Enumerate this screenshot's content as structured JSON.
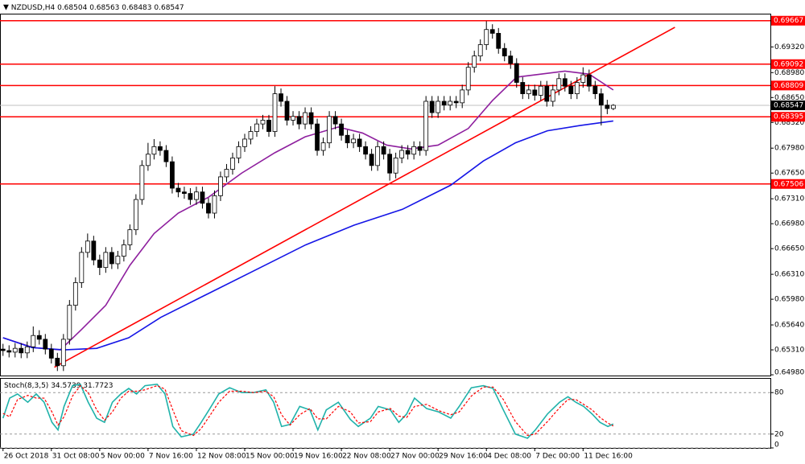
{
  "chart_data": [
    {
      "type": "candlestick",
      "title": "NZDUSD,H4",
      "open": [
        0.6532,
        0.653,
        0.6528,
        0.6533,
        0.6527,
        0.6535,
        0.655,
        0.6545,
        0.6532,
        0.652,
        0.651,
        0.6545,
        0.659,
        0.662,
        0.666,
        0.6675,
        0.665,
        0.664,
        0.666,
        0.6645,
        0.6655,
        0.667,
        0.669,
        0.673,
        0.6775,
        0.679,
        0.68,
        0.6795,
        0.678,
        0.6745,
        0.674,
        0.6738,
        0.673,
        0.674,
        0.6725,
        0.6712,
        0.6735,
        0.676,
        0.677,
        0.6785,
        0.68,
        0.681,
        0.682,
        0.683,
        0.6835,
        0.682,
        0.687,
        0.686,
        0.6835,
        0.684,
        0.683,
        0.6845,
        0.683,
        0.6795,
        0.6805,
        0.684,
        0.683,
        0.6815,
        0.6805,
        0.681,
        0.68,
        0.679,
        0.6775,
        0.68,
        0.679,
        0.6765,
        0.6785,
        0.6795,
        0.679,
        0.68,
        0.6795,
        0.686,
        0.6845,
        0.686,
        0.6855,
        0.686,
        0.6858,
        0.6875,
        0.6905,
        0.692,
        0.6935,
        0.6955,
        0.695,
        0.693,
        0.692,
        0.691,
        0.6885,
        0.687,
        0.6875,
        0.6868,
        0.688,
        0.686,
        0.6875,
        0.689,
        0.688,
        0.687,
        0.6885,
        0.6895,
        0.688,
        0.687,
        0.6855,
        0.68504
      ],
      "high": [
        0.6539,
        0.6537,
        0.654,
        0.654,
        0.6542,
        0.6562,
        0.6557,
        0.6552,
        0.6539,
        0.6527,
        0.6552,
        0.6597,
        0.6627,
        0.6667,
        0.6685,
        0.6682,
        0.6657,
        0.6667,
        0.6667,
        0.6662,
        0.6677,
        0.6697,
        0.6737,
        0.6782,
        0.6805,
        0.681,
        0.6807,
        0.6802,
        0.6787,
        0.6752,
        0.6747,
        0.6745,
        0.6747,
        0.6747,
        0.6732,
        0.6742,
        0.6767,
        0.6777,
        0.6792,
        0.6807,
        0.6817,
        0.6827,
        0.6837,
        0.6842,
        0.6842,
        0.688,
        0.6877,
        0.6867,
        0.6847,
        0.6847,
        0.6852,
        0.6852,
        0.6837,
        0.6812,
        0.6847,
        0.6847,
        0.6837,
        0.6822,
        0.6817,
        0.6817,
        0.6807,
        0.6797,
        0.6807,
        0.6807,
        0.6797,
        0.6792,
        0.6802,
        0.6802,
        0.6807,
        0.6807,
        0.6867,
        0.6867,
        0.6867,
        0.6867,
        0.6867,
        0.6867,
        0.6882,
        0.6912,
        0.6927,
        0.6942,
        0.6966,
        0.6962,
        0.6957,
        0.6937,
        0.6927,
        0.6917,
        0.6892,
        0.6882,
        0.6882,
        0.6887,
        0.6887,
        0.6882,
        0.6897,
        0.6897,
        0.6887,
        0.6892,
        0.6905,
        0.6902,
        0.6887,
        0.6877,
        0.6862,
        0.68563
      ],
      "low": [
        0.6523,
        0.6521,
        0.6521,
        0.652,
        0.652,
        0.6528,
        0.6538,
        0.6525,
        0.6513,
        0.6503,
        0.6503,
        0.6538,
        0.6583,
        0.6613,
        0.6653,
        0.6643,
        0.663,
        0.6633,
        0.6638,
        0.6638,
        0.6648,
        0.6663,
        0.6683,
        0.6723,
        0.6768,
        0.6783,
        0.6788,
        0.6773,
        0.6738,
        0.6733,
        0.6731,
        0.6723,
        0.6723,
        0.6718,
        0.6705,
        0.6705,
        0.6728,
        0.6753,
        0.6763,
        0.6778,
        0.6793,
        0.6803,
        0.6813,
        0.6823,
        0.6813,
        0.6813,
        0.6853,
        0.6828,
        0.6828,
        0.6823,
        0.6823,
        0.6823,
        0.6788,
        0.6788,
        0.6798,
        0.6823,
        0.6808,
        0.6798,
        0.6798,
        0.6793,
        0.6783,
        0.6768,
        0.6768,
        0.6783,
        0.6755,
        0.6758,
        0.6778,
        0.6783,
        0.6783,
        0.6788,
        0.6788,
        0.6838,
        0.6838,
        0.6848,
        0.6848,
        0.6851,
        0.6851,
        0.6868,
        0.6898,
        0.6913,
        0.6928,
        0.6943,
        0.6923,
        0.6913,
        0.6903,
        0.6878,
        0.6863,
        0.6863,
        0.6861,
        0.6861,
        0.6853,
        0.6853,
        0.6868,
        0.6873,
        0.6863,
        0.6863,
        0.6878,
        0.6873,
        0.6863,
        0.6828,
        0.6843,
        0.68483
      ],
      "close": [
        0.653,
        0.6528,
        0.6533,
        0.6527,
        0.6535,
        0.655,
        0.6545,
        0.6532,
        0.652,
        0.651,
        0.6545,
        0.659,
        0.662,
        0.666,
        0.6675,
        0.665,
        0.664,
        0.666,
        0.6645,
        0.6655,
        0.667,
        0.669,
        0.673,
        0.6775,
        0.679,
        0.68,
        0.6795,
        0.678,
        0.6745,
        0.674,
        0.6738,
        0.673,
        0.674,
        0.6725,
        0.6712,
        0.6735,
        0.676,
        0.677,
        0.6785,
        0.68,
        0.681,
        0.682,
        0.683,
        0.6835,
        0.682,
        0.687,
        0.686,
        0.6835,
        0.684,
        0.683,
        0.6845,
        0.683,
        0.6795,
        0.6805,
        0.684,
        0.683,
        0.6815,
        0.6805,
        0.681,
        0.68,
        0.679,
        0.6775,
        0.68,
        0.679,
        0.6765,
        0.6785,
        0.6795,
        0.679,
        0.68,
        0.6795,
        0.686,
        0.6845,
        0.686,
        0.6855,
        0.686,
        0.6858,
        0.6875,
        0.6905,
        0.692,
        0.6935,
        0.6955,
        0.695,
        0.693,
        0.692,
        0.691,
        0.6885,
        0.687,
        0.6875,
        0.6868,
        0.688,
        0.686,
        0.6875,
        0.689,
        0.688,
        0.687,
        0.6885,
        0.6895,
        0.688,
        0.687,
        0.6855,
        0.68504,
        0.68547
      ],
      "series": [
        {
          "color": "#8e1f9e",
          "x": [
            0,
            5,
            9.5,
            13,
            17,
            21,
            25,
            29,
            34,
            39.5,
            45,
            50,
            55.5,
            59.5,
            63.5,
            67.5,
            72,
            77,
            81,
            85,
            89,
            93,
            97,
            101
          ],
          "values": [
            0.6547,
            0.6534,
            0.6531,
            0.6558,
            0.659,
            0.6643,
            0.6685,
            0.6712,
            0.6733,
            0.6765,
            0.6792,
            0.6813,
            0.6826,
            0.6818,
            0.6802,
            0.6797,
            0.6802,
            0.6824,
            0.6861,
            0.6892,
            0.6896,
            0.69,
            0.6896,
            0.6875
          ]
        },
        {
          "color": "#1515e6",
          "x": [
            0,
            4.8,
            10.1,
            15.5,
            20.8,
            26.1,
            34.1,
            42.1,
            50.1,
            58.1,
            66.1,
            74.1,
            79.5,
            84.8,
            90.1,
            95.5,
            101
          ],
          "values": [
            0.6547,
            0.6534,
            0.6531,
            0.6533,
            0.6547,
            0.6574,
            0.6606,
            0.6638,
            0.667,
            0.6696,
            0.6717,
            0.6749,
            0.6781,
            0.6805,
            0.6821,
            0.6828,
            0.6834
          ]
        },
        {
          "color": "#ff0000",
          "x": [
            8.5,
            111.2
          ],
          "values": [
            0.6508,
            0.6958
          ]
        }
      ],
      "levels": [
        {
          "value": 0.69667,
          "color": "#ff0000"
        },
        {
          "value": 0.69092,
          "color": "#ff0000"
        },
        {
          "value": 0.68809,
          "color": "#ff0000"
        },
        {
          "value": 0.68395,
          "color": "#ff0000"
        },
        {
          "value": 0.67506,
          "color": "#ff0000"
        }
      ],
      "bull_color": "#ffffff",
      "bear_color": "#000000",
      "xlim": [
        -0.5,
        127
      ],
      "ylim": [
        0.6497,
        0.6976
      ],
      "yticks": [
        {
          "value": 0.6932,
          "label": "0.69320"
        },
        {
          "value": 0.6898,
          "label": "0.68980"
        },
        {
          "value": 0.6865,
          "label": "0.68650"
        },
        {
          "value": 0.6832,
          "label": "0.68320"
        },
        {
          "value": 0.6798,
          "label": "0.67980"
        },
        {
          "value": 0.6765,
          "label": "0.67650"
        },
        {
          "value": 0.6731,
          "label": "0.67310"
        },
        {
          "value": 0.6698,
          "label": "0.66980"
        },
        {
          "value": 0.6665,
          "label": "0.66650"
        },
        {
          "value": 0.6631,
          "label": "0.66310"
        },
        {
          "value": 0.6598,
          "label": "0.65980"
        },
        {
          "value": 0.6564,
          "label": "0.65640"
        },
        {
          "value": 0.6531,
          "label": "0.65310"
        },
        {
          "value": 0.6498,
          "label": "0.64980"
        }
      ],
      "xticks": [
        {
          "value": 0,
          "label": "26 Oct 2018"
        },
        {
          "value": 8,
          "label": "31 Oct 08:00"
        },
        {
          "value": 16,
          "label": "5 Nov 00:00"
        },
        {
          "value": 24,
          "label": "7 Nov 16:00"
        },
        {
          "value": 32,
          "label": "12 Nov 08:00"
        },
        {
          "value": 40,
          "label": "15 Nov 00:00"
        },
        {
          "value": 48,
          "label": "19 Nov 16:00"
        },
        {
          "value": 56,
          "label": "22 Nov 08:00"
        },
        {
          "value": 64,
          "label": "27 Nov 00:00"
        },
        {
          "value": 72,
          "label": "29 Nov 16:00"
        },
        {
          "value": 80,
          "label": "4 Dec 08:00"
        },
        {
          "value": 88,
          "label": "7 Dec 00:00"
        },
        {
          "value": 96,
          "label": "11 Dec 16:00"
        }
      ],
      "grid": false
    },
    {
      "type": "line",
      "title": "Stoch(8,3,5)",
      "series": [
        {
          "color": "#20b2aa",
          "dashed": false,
          "x": [
            0,
            1.1,
            2.4,
            4.1,
            5.5,
            6.8,
            8.1,
            9.1,
            10.1,
            11.5,
            12.8,
            14.1,
            15.5,
            16.8,
            18.1,
            19.5,
            20.8,
            22.1,
            23.5,
            25.5,
            26.8,
            28.1,
            29.5,
            31.5,
            32.8,
            34.1,
            35.7,
            37.5,
            39.5,
            41.5,
            43.5,
            44.8,
            46.1,
            47.5,
            49.1,
            50.8,
            52.1,
            53.5,
            55.5,
            57.5,
            58.8,
            60.8,
            62.1,
            64.1,
            65.5,
            66.8,
            68.1,
            70.1,
            72.1,
            74.1,
            75.5,
            77.5,
            79.5,
            81.1,
            82.8,
            84.8,
            86.8,
            88.1,
            90.1,
            92.1,
            93.5,
            94.8,
            96.1,
            97.5,
            98.8,
            100.1,
            101
          ],
          "values": [
            43,
            72,
            78,
            66,
            78,
            66,
            37,
            26,
            60,
            90,
            92,
            66,
            43,
            37,
            66,
            78,
            86,
            78,
            90,
            92,
            78,
            31,
            16,
            20,
            37,
            55,
            78,
            87,
            80,
            80,
            84,
            66,
            31,
            34,
            60,
            55,
            26,
            55,
            66,
            41,
            31,
            43,
            60,
            55,
            37,
            49,
            72,
            57,
            52,
            43,
            60,
            87,
            90,
            86,
            55,
            20,
            14,
            26,
            49,
            66,
            74,
            66,
            60,
            49,
            37,
            31,
            34.5739
          ]
        },
        {
          "color": "#ff0000",
          "dashed": true,
          "x": [
            0,
            1.1,
            2.4,
            4.1,
            5.5,
            6.8,
            8.1,
            9.1,
            10.1,
            11.5,
            12.8,
            14.1,
            15.5,
            16.8,
            18.1,
            19.5,
            20.8,
            22.1,
            23.5,
            25.5,
            26.8,
            28.1,
            29.5,
            31.5,
            32.8,
            34.1,
            35.7,
            37.5,
            39.5,
            41.5,
            43.5,
            44.8,
            46.1,
            47.5,
            49.1,
            50.8,
            52.1,
            53.5,
            55.5,
            57.5,
            58.8,
            60.8,
            62.1,
            64.1,
            65.5,
            66.8,
            68.1,
            70.1,
            72.1,
            74.1,
            75.5,
            77.5,
            79.5,
            81.1,
            82.8,
            84.8,
            86.8,
            88.1,
            90.1,
            92.1,
            93.5,
            94.8,
            96.1,
            97.5,
            98.8,
            100.1,
            101
          ],
          "values": [
            50,
            45,
            70,
            76,
            72,
            72,
            52,
            33,
            45,
            75,
            90,
            80,
            55,
            40,
            52,
            72,
            82,
            82,
            84,
            90,
            85,
            55,
            25,
            18,
            28,
            45,
            66,
            82,
            82,
            80,
            82,
            74,
            48,
            33,
            48,
            57,
            42,
            42,
            60,
            52,
            36,
            38,
            52,
            57,
            46,
            44,
            60,
            63,
            54,
            48,
            52,
            75,
            88,
            88,
            70,
            38,
            18,
            20,
            38,
            58,
            70,
            70,
            63,
            55,
            44,
            36,
            31.7723
          ]
        }
      ],
      "xlim": [
        -0.5,
        127
      ],
      "ylim": [
        0,
        100
      ],
      "yticks": [
        0,
        20,
        80
      ],
      "grid": true
    }
  ]
}
